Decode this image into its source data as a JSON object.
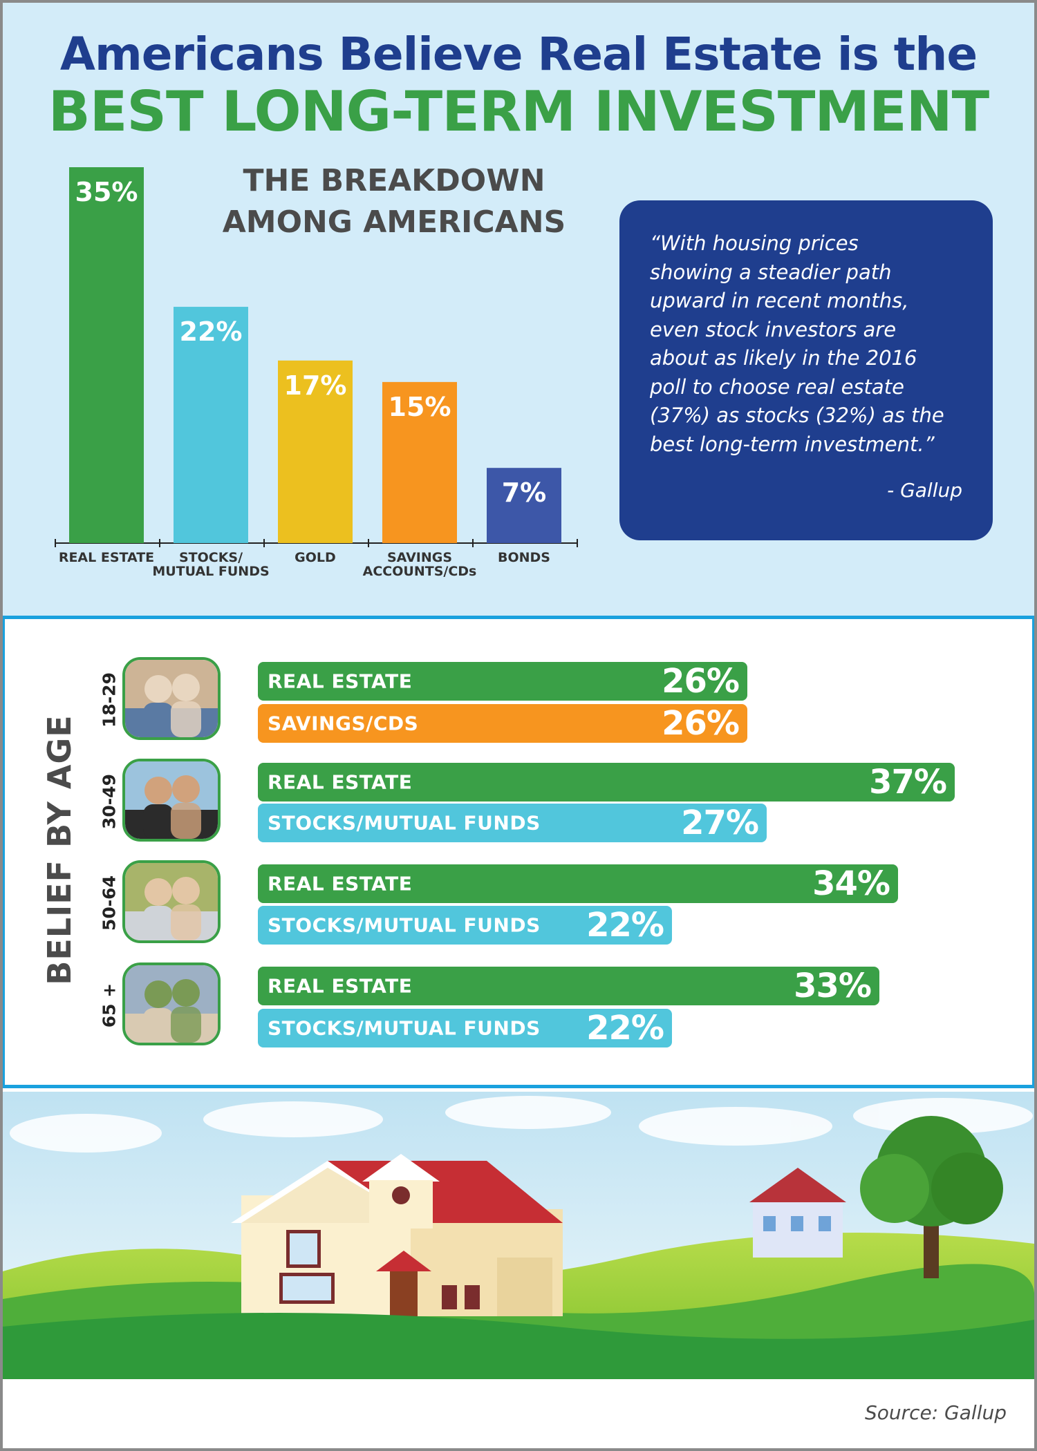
{
  "header": {
    "title_line1": "Americans Believe Real Estate is the",
    "title_line2": "BEST LONG-TERM INVESTMENT"
  },
  "breakdown": {
    "title_line1": "THE BREAKDOWN",
    "title_line2": "AMONG AMERICANS"
  },
  "quote": {
    "text": "“With housing prices\nshowing a steadier path\nupward in recent months,\neven stock investors are\nabout as likely in the 2016\npoll to choose real estate\n(37%) as stocks (32%) as the\nbest long-term investment.”",
    "attribution": "- Gallup"
  },
  "chart_data": [
    {
      "type": "bar",
      "title": "THE BREAKDOWN AMONG AMERICANS",
      "categories": [
        "REAL ESTATE",
        "STOCKS/\nMUTUAL FUNDS",
        "GOLD",
        "SAVINGS\nACCOUNTS/CDs",
        "BONDS"
      ],
      "values": [
        35,
        22,
        17,
        15,
        7
      ],
      "value_labels": [
        "35%",
        "22%",
        "17%",
        "15%",
        "7%"
      ],
      "colors": [
        "#3aa047",
        "#51c6dc",
        "#ecc01f",
        "#f7951f",
        "#3d57a8"
      ],
      "ylim": [
        0,
        35
      ],
      "grid": false
    },
    {
      "type": "bar",
      "orientation": "horizontal",
      "title": "BELIEF BY AGE",
      "groups": [
        {
          "age": "18-29",
          "bars": [
            {
              "label": "REAL ESTATE",
              "value": 26,
              "value_label": "26%",
              "color": "#3aa047"
            },
            {
              "label": "SAVINGS/CDS",
              "value": 26,
              "value_label": "26%",
              "color": "#f7951f"
            }
          ]
        },
        {
          "age": "30-49",
          "bars": [
            {
              "label": "REAL ESTATE",
              "value": 37,
              "value_label": "37%",
              "color": "#3aa047"
            },
            {
              "label": "STOCKS/MUTUAL FUNDS",
              "value": 27,
              "value_label": "27%",
              "color": "#51c6dc"
            }
          ]
        },
        {
          "age": "50-64",
          "bars": [
            {
              "label": "REAL ESTATE",
              "value": 34,
              "value_label": "34%",
              "color": "#3aa047"
            },
            {
              "label": "STOCKS/MUTUAL FUNDS",
              "value": 22,
              "value_label": "22%",
              "color": "#51c6dc"
            }
          ]
        },
        {
          "age": "65 +",
          "bars": [
            {
              "label": "REAL ESTATE",
              "value": 33,
              "value_label": "33%",
              "color": "#3aa047"
            },
            {
              "label": "STOCKS/MUTUAL FUNDS",
              "value": 22,
              "value_label": "22%",
              "color": "#51c6dc"
            }
          ]
        }
      ]
    }
  ],
  "footer": {
    "source": "Source: Gallup"
  }
}
